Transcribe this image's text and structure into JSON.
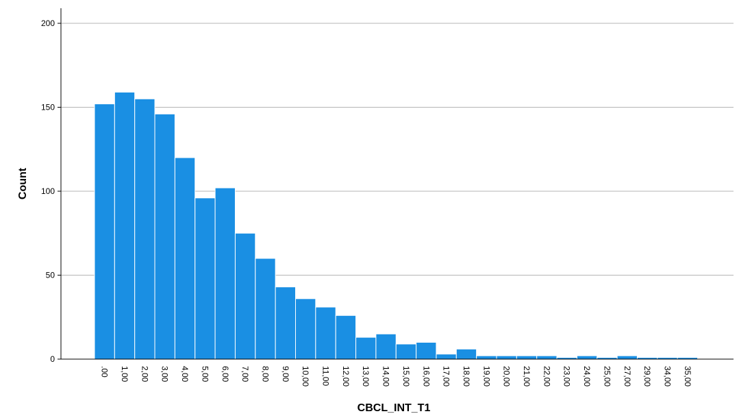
{
  "chart_data": {
    "type": "bar",
    "xlabel": "CBCL_INT_T1",
    "ylabel": "Count",
    "ylim": [
      0,
      210
    ],
    "yticks": [
      "0",
      "50",
      "100",
      "150",
      "200"
    ],
    "categories": [
      ".00",
      "1,00",
      "2,00",
      "3,00",
      "4,00",
      "5,00",
      "6,00",
      "7,00",
      "8,00",
      "9,00",
      "10,00",
      "11,00",
      "12,00",
      "13,00",
      "14,00",
      "15,00",
      "16,00",
      "17,00",
      "18,00",
      "19,00",
      "20,00",
      "21,00",
      "22,00",
      "23,00",
      "24,00",
      "25,00",
      "27,00",
      "29,00",
      "34,00",
      "35,00"
    ],
    "values": [
      152,
      159,
      155,
      146,
      120,
      96,
      102,
      75,
      60,
      43,
      36,
      31,
      26,
      13,
      15,
      9,
      10,
      3,
      6,
      2,
      2,
      2,
      2,
      1,
      2,
      1,
      2,
      1,
      1,
      1
    ],
    "grid": true,
    "bar_color": "#1a8fe3"
  }
}
